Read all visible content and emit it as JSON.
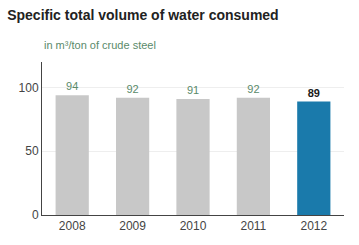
{
  "chart_data": {
    "type": "bar",
    "title": "Specific total volume of water consumed",
    "subtitle": "in m³/ton of crude steel",
    "categories": [
      "2008",
      "2009",
      "2010",
      "2011",
      "2012"
    ],
    "values": [
      94,
      92,
      91,
      92,
      89
    ],
    "colors": [
      "#c8c8c8",
      "#c8c8c8",
      "#c8c8c8",
      "#c8c8c8",
      "#1a7aab"
    ],
    "ylim": [
      0,
      120
    ],
    "yticks": [
      0,
      50,
      100
    ],
    "grid": true,
    "data_labels": true
  }
}
